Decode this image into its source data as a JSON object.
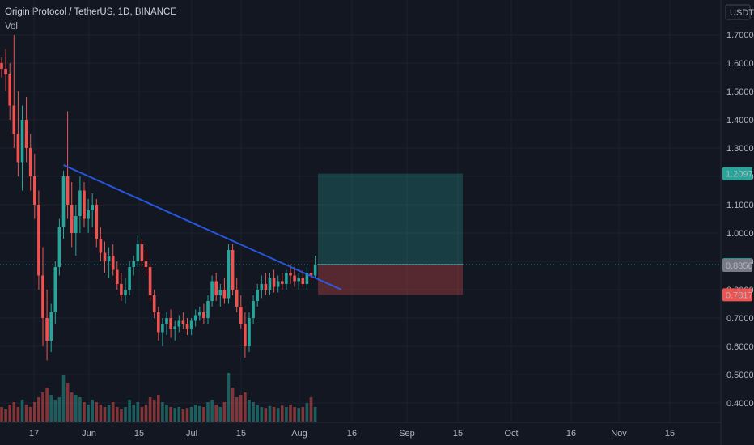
{
  "header": {
    "title": "Origin Protocol / TetherUS, 1D, BINANCE",
    "indicator": "Vol"
  },
  "price_axis": {
    "currency": "USDT"
  },
  "chart_data": {
    "type": "candlestick",
    "symbol": "Origin Protocol / TetherUS",
    "interval": "1D",
    "exchange": "BINANCE",
    "y_ticks": [
      "1.7000",
      "1.6000",
      "1.5000",
      "1.4000",
      "1.3000",
      "1.2000",
      "1.1000",
      "1.0000",
      "0.9000",
      "0.8000",
      "0.7000",
      "0.6000",
      "0.5000",
      "0.4000"
    ],
    "x_ticks": [
      "17",
      "Jun",
      "15",
      "Jul",
      "15",
      "Aug",
      "16",
      "Sep",
      "15",
      "Oct",
      "16",
      "Nov",
      "15"
    ],
    "ylim": [
      0.35,
      1.8
    ],
    "price_labels": [
      {
        "value": "1.2097",
        "role": "take-profit",
        "color": "#26a69a"
      },
      {
        "value": "0.8883",
        "role": "last-price",
        "color": "#26a69a"
      },
      {
        "value": "0.8856",
        "role": "entry",
        "color": "#787b86"
      },
      {
        "value": "0.7817",
        "role": "stop-loss",
        "color": "#ef5350"
      }
    ],
    "trendline": {
      "from": [
        1.24
      ],
      "to": [
        0.8
      ]
    },
    "position": {
      "entry": 0.8856,
      "target": 1.2097,
      "stop": 0.7817
    },
    "candles": [
      [
        1.6,
        1.62,
        1.55,
        1.58
      ],
      [
        1.58,
        1.65,
        1.5,
        1.56
      ],
      [
        1.56,
        1.6,
        1.4,
        1.45
      ],
      [
        1.45,
        1.7,
        1.3,
        1.35
      ],
      [
        1.35,
        1.5,
        1.2,
        1.25
      ],
      [
        1.25,
        1.45,
        1.15,
        1.4
      ],
      [
        1.4,
        1.48,
        1.25,
        1.3
      ],
      [
        1.3,
        1.35,
        1.15,
        1.2
      ],
      [
        1.2,
        1.28,
        1.05,
        1.1
      ],
      [
        1.1,
        1.15,
        0.8,
        0.85
      ],
      [
        0.85,
        0.95,
        0.6,
        0.7
      ],
      [
        0.7,
        0.8,
        0.55,
        0.62
      ],
      [
        0.62,
        0.75,
        0.58,
        0.72
      ],
      [
        0.72,
        0.9,
        0.68,
        0.88
      ],
      [
        0.88,
        1.05,
        0.85,
        1.02
      ],
      [
        1.02,
        1.22,
        0.98,
        1.2
      ],
      [
        1.2,
        1.43,
        1.05,
        1.1
      ],
      [
        1.1,
        1.18,
        0.95,
        1.0
      ],
      [
        1.0,
        1.1,
        0.92,
        1.06
      ],
      [
        1.06,
        1.2,
        1.0,
        1.15
      ],
      [
        1.15,
        1.18,
        1.02,
        1.05
      ],
      [
        1.05,
        1.12,
        1.0,
        1.08
      ],
      [
        1.08,
        1.14,
        1.02,
        1.1
      ],
      [
        1.1,
        1.12,
        0.95,
        0.98
      ],
      [
        0.98,
        1.02,
        0.9,
        0.93
      ],
      [
        0.93,
        0.97,
        0.86,
        0.9
      ],
      [
        0.9,
        0.95,
        0.84,
        0.92
      ],
      [
        0.92,
        0.96,
        0.85,
        0.87
      ],
      [
        0.87,
        0.9,
        0.8,
        0.82
      ],
      [
        0.82,
        0.86,
        0.76,
        0.78
      ],
      [
        0.78,
        0.84,
        0.75,
        0.8
      ],
      [
        0.8,
        0.9,
        0.78,
        0.88
      ],
      [
        0.88,
        0.92,
        0.85,
        0.9
      ],
      [
        0.9,
        0.99,
        0.88,
        0.96
      ],
      [
        0.96,
        0.98,
        0.88,
        0.9
      ],
      [
        0.9,
        0.94,
        0.85,
        0.88
      ],
      [
        0.88,
        0.9,
        0.76,
        0.78
      ],
      [
        0.78,
        0.8,
        0.7,
        0.72
      ],
      [
        0.72,
        0.74,
        0.62,
        0.65
      ],
      [
        0.65,
        0.7,
        0.6,
        0.68
      ],
      [
        0.68,
        0.72,
        0.64,
        0.7
      ],
      [
        0.7,
        0.73,
        0.63,
        0.66
      ],
      [
        0.66,
        0.69,
        0.62,
        0.67
      ],
      [
        0.67,
        0.71,
        0.65,
        0.69
      ],
      [
        0.69,
        0.72,
        0.66,
        0.68
      ],
      [
        0.68,
        0.7,
        0.64,
        0.66
      ],
      [
        0.66,
        0.7,
        0.64,
        0.69
      ],
      [
        0.69,
        0.73,
        0.67,
        0.71
      ],
      [
        0.71,
        0.74,
        0.69,
        0.72
      ],
      [
        0.72,
        0.75,
        0.68,
        0.7
      ],
      [
        0.7,
        0.78,
        0.68,
        0.76
      ],
      [
        0.76,
        0.85,
        0.74,
        0.83
      ],
      [
        0.83,
        0.86,
        0.76,
        0.78
      ],
      [
        0.78,
        0.82,
        0.74,
        0.8
      ],
      [
        0.8,
        0.84,
        0.75,
        0.77
      ],
      [
        0.77,
        0.96,
        0.75,
        0.94
      ],
      [
        0.94,
        0.96,
        0.78,
        0.8
      ],
      [
        0.8,
        0.84,
        0.72,
        0.74
      ],
      [
        0.74,
        0.78,
        0.66,
        0.68
      ],
      [
        0.68,
        0.72,
        0.56,
        0.6
      ],
      [
        0.6,
        0.72,
        0.58,
        0.7
      ],
      [
        0.7,
        0.78,
        0.68,
        0.76
      ],
      [
        0.76,
        0.82,
        0.74,
        0.8
      ],
      [
        0.8,
        0.85,
        0.77,
        0.82
      ],
      [
        0.82,
        0.86,
        0.78,
        0.8
      ],
      [
        0.8,
        0.86,
        0.78,
        0.84
      ],
      [
        0.84,
        0.87,
        0.79,
        0.81
      ],
      [
        0.81,
        0.85,
        0.79,
        0.83
      ],
      [
        0.83,
        0.86,
        0.8,
        0.82
      ],
      [
        0.82,
        0.87,
        0.8,
        0.86
      ],
      [
        0.86,
        0.89,
        0.82,
        0.85
      ],
      [
        0.85,
        0.88,
        0.81,
        0.83
      ],
      [
        0.83,
        0.86,
        0.8,
        0.84
      ],
      [
        0.84,
        0.87,
        0.81,
        0.82
      ],
      [
        0.82,
        0.88,
        0.8,
        0.86
      ],
      [
        0.86,
        0.9,
        0.83,
        0.85
      ],
      [
        0.85,
        0.92,
        0.84,
        0.888
      ]
    ],
    "volumes": [
      0.3,
      0.25,
      0.35,
      0.4,
      0.3,
      0.45,
      0.35,
      0.3,
      0.4,
      0.5,
      0.6,
      0.7,
      0.55,
      0.45,
      0.5,
      0.95,
      0.8,
      0.6,
      0.55,
      0.5,
      0.4,
      0.35,
      0.45,
      0.4,
      0.35,
      0.3,
      0.35,
      0.4,
      0.3,
      0.25,
      0.3,
      0.45,
      0.35,
      0.4,
      0.3,
      0.35,
      0.5,
      0.45,
      0.55,
      0.4,
      0.35,
      0.3,
      0.28,
      0.3,
      0.25,
      0.28,
      0.3,
      0.35,
      0.32,
      0.3,
      0.4,
      0.45,
      0.35,
      0.3,
      0.4,
      1.0,
      0.7,
      0.5,
      0.55,
      0.6,
      0.45,
      0.4,
      0.35,
      0.3,
      0.28,
      0.32,
      0.3,
      0.28,
      0.33,
      0.3,
      0.35,
      0.3,
      0.28,
      0.3,
      0.38,
      0.5,
      0.3
    ]
  }
}
